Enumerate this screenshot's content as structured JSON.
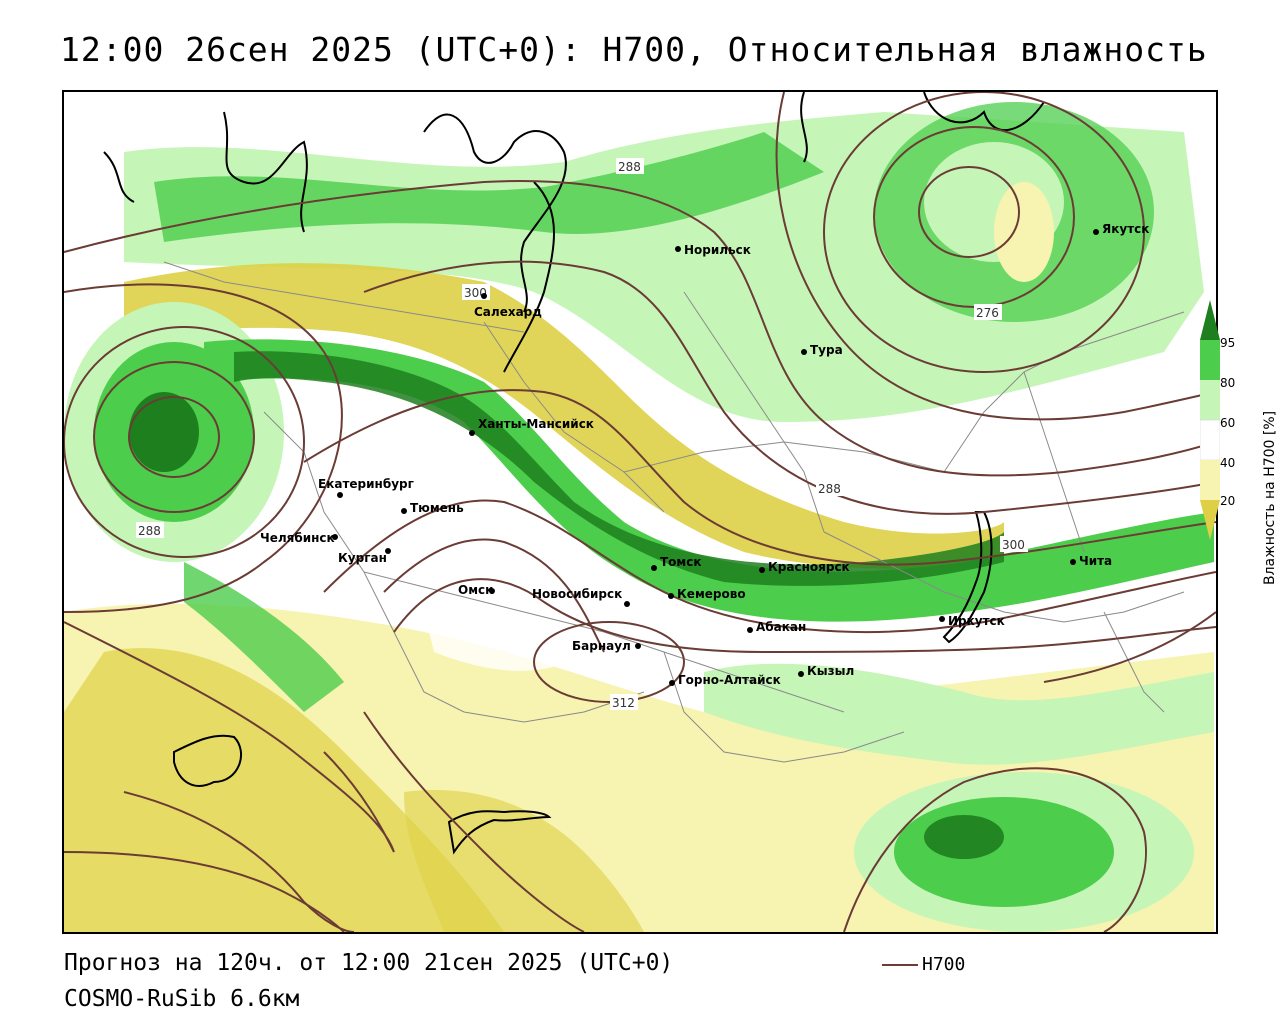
{
  "title": "12:00 26сен 2025 (UTC+0): H700, Относительная влажность",
  "footer": {
    "forecast": "Прогноз на 120ч. от 12:00 21сен 2025 (UTC+0)",
    "model": "COSMO-RuSib 6.6км"
  },
  "legend": {
    "line_label": "H700",
    "line_color": "#6b3b35"
  },
  "colorbar": {
    "title": "Влажность на Н700 [%]",
    "ticks": [
      "95",
      "80",
      "60",
      "40",
      "20"
    ],
    "colors": {
      "95": "#1e7f1e",
      "80": "#4ccd4c",
      "60": "#c6f5b8",
      "40": "#f7f3b0",
      "20": "#ddd046"
    }
  },
  "cities": [
    {
      "name": "Норильск"
    },
    {
      "name": "Салехард"
    },
    {
      "name": "Тура"
    },
    {
      "name": "Якутск"
    },
    {
      "name": "Ханты-Мансийск"
    },
    {
      "name": "Екатеринбург"
    },
    {
      "name": "Тюмень"
    },
    {
      "name": "Челябинск"
    },
    {
      "name": "Курган"
    },
    {
      "name": "Омск"
    },
    {
      "name": "Новосибирск"
    },
    {
      "name": "Томск"
    },
    {
      "name": "Кемерово"
    },
    {
      "name": "Красноярск"
    },
    {
      "name": "Абакан"
    },
    {
      "name": "Барнаул"
    },
    {
      "name": "Горно-Алтайск"
    },
    {
      "name": "Кызыл"
    },
    {
      "name": "Иркутск"
    },
    {
      "name": "Чита"
    }
  ],
  "contour_labels": [
    "288",
    "300",
    "276",
    "288",
    "288",
    "300",
    "312"
  ]
}
